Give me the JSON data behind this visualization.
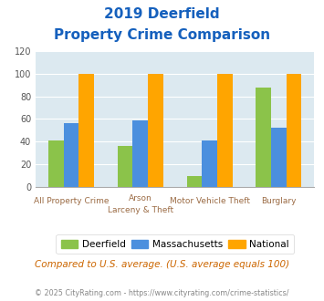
{
  "title_line1": "2019 Deerfield",
  "title_line2": "Property Crime Comparison",
  "cat_labels_top": [
    "All Property Crime",
    "Arson",
    "Motor Vehicle Theft",
    "Burglary"
  ],
  "cat_labels_bot": [
    "",
    "Larceny & Theft",
    "",
    ""
  ],
  "deerfield": [
    41,
    36,
    9,
    88
  ],
  "massachusetts": [
    56,
    59,
    41,
    52
  ],
  "national": [
    100,
    100,
    100,
    100
  ],
  "colors": {
    "deerfield": "#8bc34a",
    "massachusetts": "#4b8fde",
    "national": "#ffa500"
  },
  "ylim": [
    0,
    120
  ],
  "yticks": [
    0,
    20,
    40,
    60,
    80,
    100,
    120
  ],
  "background_color": "#dce9f0",
  "title_color": "#1560bd",
  "xlabel_color": "#9b6b44",
  "footer_text": "Compared to U.S. average. (U.S. average equals 100)",
  "copyright_text": "© 2025 CityRating.com - https://www.cityrating.com/crime-statistics/",
  "legend_labels": [
    "Deerfield",
    "Massachusetts",
    "National"
  ]
}
